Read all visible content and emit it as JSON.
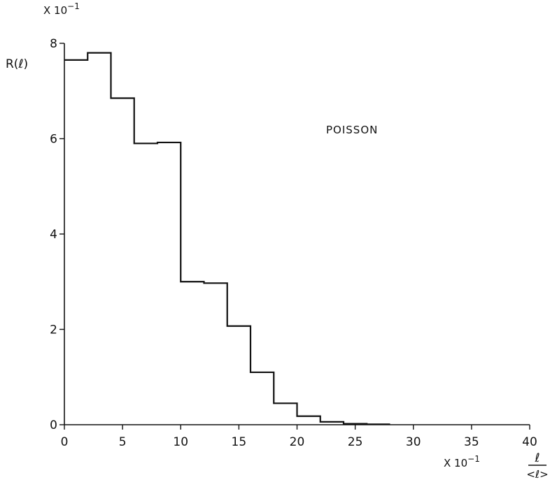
{
  "chart_data": {
    "type": "histogram",
    "title": "",
    "ylabel": "R(ℓ)",
    "xlabel_numerator": "ℓ",
    "xlabel_denominator": "<ℓ>",
    "y_scale_label": "X 10",
    "y_scale_exp": "−1",
    "x_scale_label": "X 10",
    "x_scale_exp": "−1",
    "annotation": "POISSON",
    "xlim": [
      0,
      40
    ],
    "ylim": [
      0,
      8
    ],
    "x_ticks": [
      0,
      5,
      10,
      15,
      20,
      25,
      30,
      35,
      40
    ],
    "y_ticks": [
      0,
      2,
      4,
      6,
      8
    ],
    "bin_edges": [
      0,
      2,
      4,
      6,
      8,
      10,
      12,
      14,
      16,
      18,
      20,
      22,
      24,
      26,
      28
    ],
    "values": [
      7.65,
      7.8,
      6.85,
      5.9,
      5.92,
      3.0,
      2.97,
      2.07,
      1.1,
      0.45,
      0.18,
      0.06,
      0.02,
      0.01
    ],
    "grid": false
  }
}
